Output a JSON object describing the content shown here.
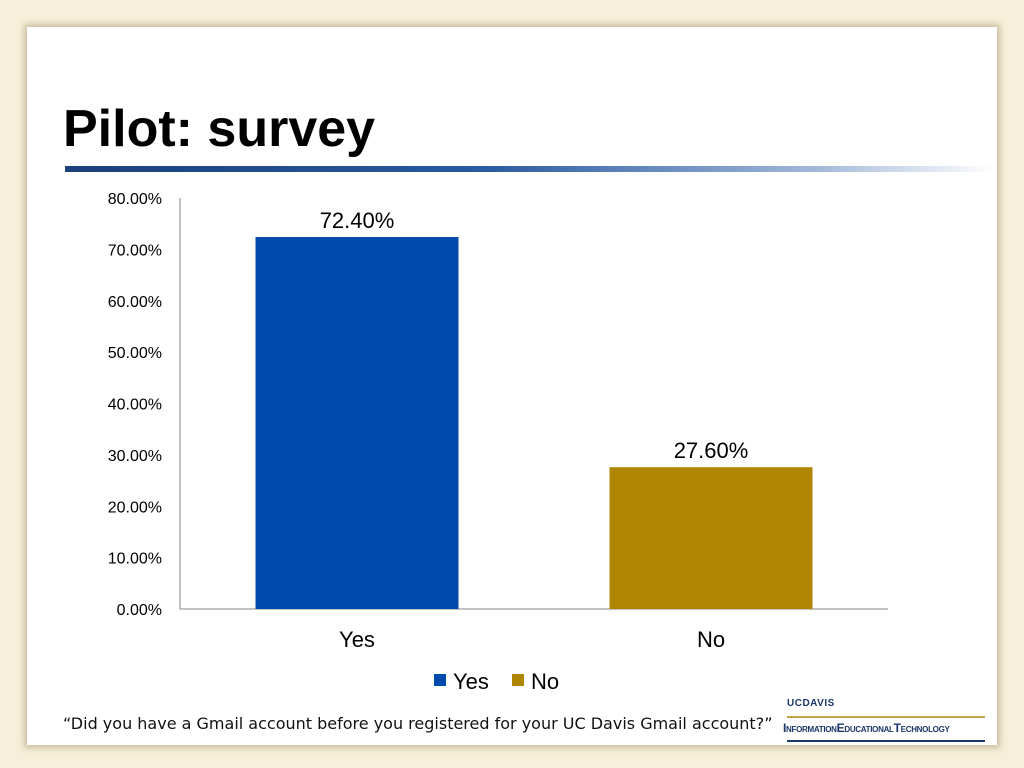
{
  "slide": {
    "title": "Pilot: survey",
    "question": "“Did you have a Gmail account before you registered for your UC Davis Gmail account?”"
  },
  "logo": {
    "top_text": "UCDAVIS",
    "main_text": "InformationEducationalTechnology"
  },
  "colors": {
    "background": "#f7efd9",
    "title_rule": "#1b3f7a",
    "yes": "#004aad",
    "no": "#b08600"
  },
  "chart_data": {
    "type": "bar",
    "categories": [
      "Yes",
      "No"
    ],
    "values": [
      72.4,
      27.6
    ],
    "data_labels": [
      "72.40%",
      "27.60%"
    ],
    "colors": [
      "#004aad",
      "#b08600"
    ],
    "ylim": [
      0,
      80
    ],
    "yticks": [
      0,
      10,
      20,
      30,
      40,
      50,
      60,
      70,
      80
    ],
    "ytick_labels": [
      "0.00%",
      "10.00%",
      "20.00%",
      "30.00%",
      "40.00%",
      "50.00%",
      "60.00%",
      "70.00%",
      "80.00%"
    ],
    "legend": [
      "Yes",
      "No"
    ],
    "legend_position": "bottom",
    "grid": false,
    "title": "",
    "xlabel": "",
    "ylabel": ""
  }
}
